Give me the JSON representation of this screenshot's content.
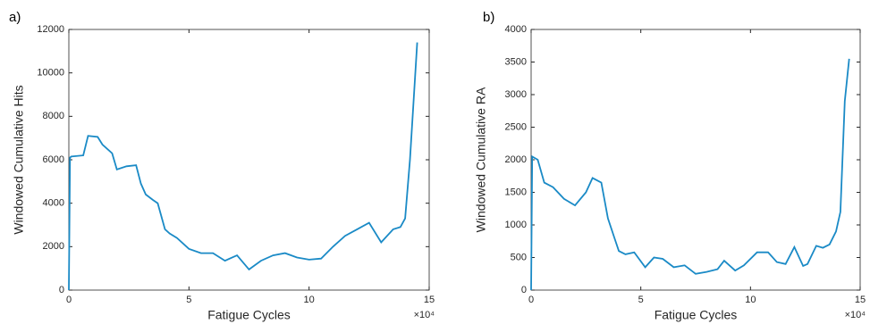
{
  "chart_data": [
    {
      "type": "line",
      "panel_label": "a)",
      "xlabel": "Fatigue Cycles",
      "ylabel": "Windowed Cumulative Hits",
      "x_scale_label": "×10⁴",
      "xlim": [
        0,
        15
      ],
      "xticks": [
        0,
        5,
        10,
        15
      ],
      "ylim": [
        0,
        12000
      ],
      "yticks": [
        0,
        2000,
        4000,
        6000,
        8000,
        10000,
        12000
      ],
      "x": [
        0,
        0.05,
        0.1,
        0.6,
        0.8,
        1.2,
        1.4,
        1.8,
        2.0,
        2.4,
        2.8,
        3.0,
        3.2,
        3.5,
        3.7,
        4.0,
        4.2,
        4.5,
        5.0,
        5.5,
        6.0,
        6.5,
        7.0,
        7.5,
        8.0,
        8.5,
        9.0,
        9.5,
        10.0,
        10.5,
        11.0,
        11.5,
        12.0,
        12.5,
        13.0,
        13.5,
        13.8,
        14.0,
        14.2,
        14.5
      ],
      "series": [
        {
          "color": "#1a8ac6",
          "values": [
            0,
            6100,
            6150,
            6200,
            7100,
            7050,
            6700,
            6300,
            5550,
            5700,
            5750,
            4900,
            4400,
            4150,
            4000,
            2800,
            2600,
            2400,
            1900,
            1700,
            1700,
            1350,
            1600,
            950,
            1350,
            1600,
            1700,
            1500,
            1400,
            1450,
            2000,
            2500,
            2800,
            3100,
            2200,
            2800,
            2900,
            3300,
            6000,
            11400
          ]
        }
      ]
    },
    {
      "type": "line",
      "panel_label": "b)",
      "xlabel": "Fatigue Cycles",
      "ylabel": "Windowed Cumulative RA",
      "x_scale_label": "×10⁴",
      "xlim": [
        0,
        15
      ],
      "xticks": [
        0,
        5,
        10,
        15
      ],
      "ylim": [
        0,
        4000
      ],
      "yticks": [
        0,
        500,
        1000,
        1500,
        2000,
        2500,
        3000,
        3500,
        4000
      ],
      "x": [
        0,
        0.05,
        0.3,
        0.6,
        1.0,
        1.5,
        2.0,
        2.5,
        2.8,
        3.2,
        3.5,
        3.8,
        4.0,
        4.3,
        4.7,
        5.2,
        5.6,
        6.0,
        6.5,
        7.0,
        7.5,
        8.0,
        8.5,
        8.8,
        9.3,
        9.7,
        10.3,
        10.8,
        11.2,
        11.6,
        12.0,
        12.4,
        12.6,
        13.0,
        13.3,
        13.6,
        13.9,
        14.1,
        14.3,
        14.5
      ],
      "series": [
        {
          "color": "#1a8ac6",
          "values": [
            0,
            2050,
            2000,
            1650,
            1580,
            1400,
            1300,
            1500,
            1720,
            1650,
            1100,
            800,
            600,
            550,
            580,
            350,
            500,
            480,
            350,
            380,
            250,
            280,
            320,
            450,
            300,
            380,
            580,
            580,
            430,
            400,
            660,
            370,
            400,
            680,
            650,
            700,
            900,
            1200,
            2900,
            3550
          ]
        }
      ]
    }
  ]
}
